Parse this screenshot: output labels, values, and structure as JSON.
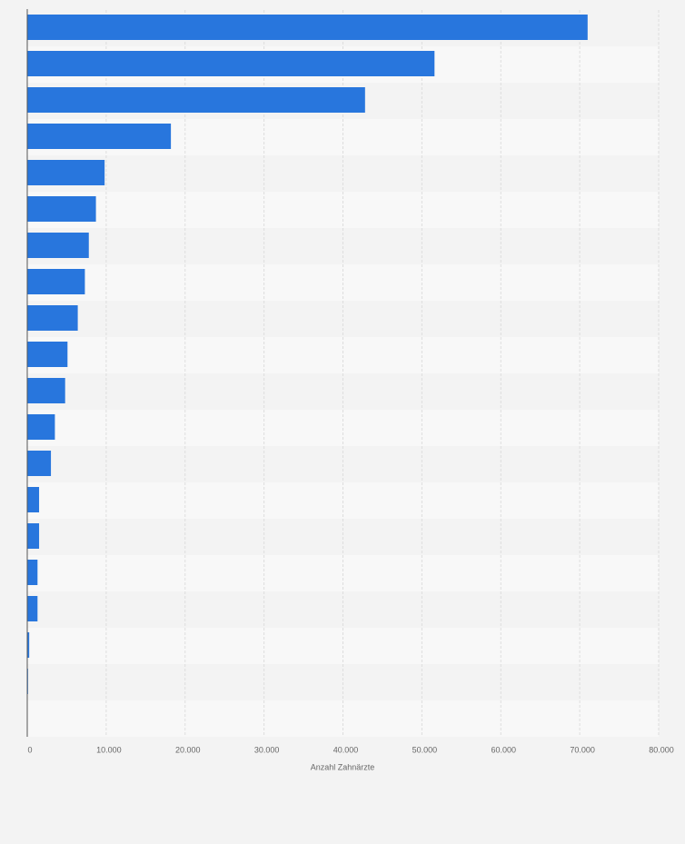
{
  "chart_data": {
    "type": "bar",
    "orientation": "horizontal",
    "x_label": "Anzahl Zahnärzte",
    "categories": [
      null,
      null,
      null,
      null,
      null,
      null,
      null,
      null,
      null,
      null,
      null,
      null,
      null,
      null,
      null,
      null,
      null,
      null,
      null
    ],
    "values": [
      71000,
      51600,
      42800,
      18200,
      9800,
      8700,
      7800,
      7300,
      6400,
      5100,
      4800,
      3500,
      3000,
      1500,
      1500,
      1300,
      1300,
      250,
      100
    ],
    "color": "#2876dd",
    "xlim": [
      0,
      80000
    ],
    "xticks": [
      0,
      {
        "value": 10000,
        "label": "10.000"
      },
      {
        "value": 20000,
        "label": "20.000"
      },
      {
        "value": 30000,
        "label": "30.000"
      },
      {
        "value": 40000,
        "label": "40.000"
      },
      {
        "value": 50000,
        "label": "50.000"
      },
      {
        "value": 60000,
        "label": "60.000"
      },
      {
        "value": 70000,
        "label": "70.000"
      },
      {
        "value": 80000,
        "label": "80.000"
      }
    ],
    "grid": true
  }
}
